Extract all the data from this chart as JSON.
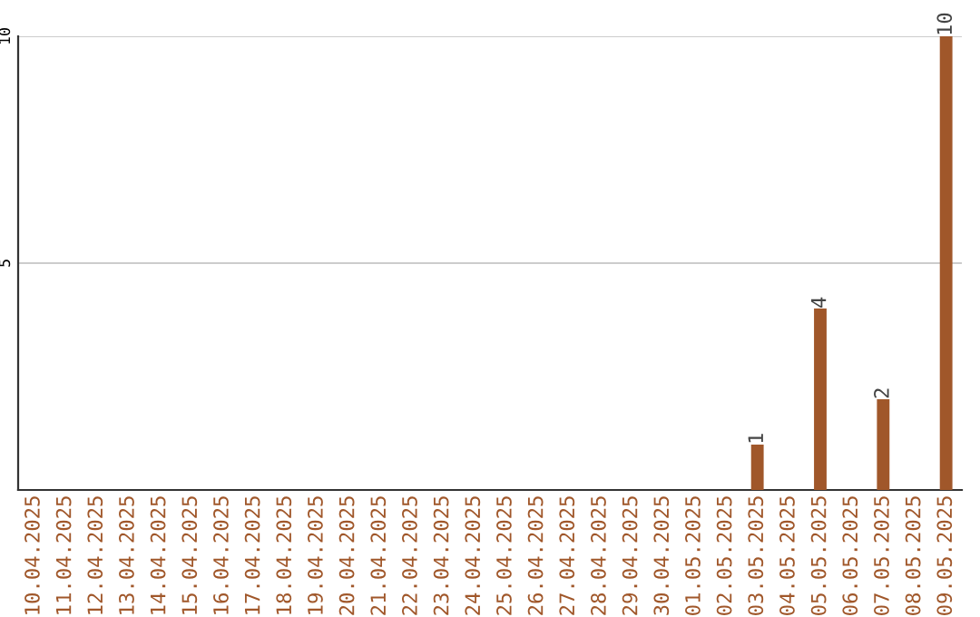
{
  "chart_data": {
    "type": "bar",
    "categories": [
      "10.04.2025",
      "11.04.2025",
      "12.04.2025",
      "13.04.2025",
      "14.04.2025",
      "15.04.2025",
      "16.04.2025",
      "17.04.2025",
      "18.04.2025",
      "19.04.2025",
      "20.04.2025",
      "21.04.2025",
      "22.04.2025",
      "23.04.2025",
      "24.04.2025",
      "25.04.2025",
      "26.04.2025",
      "27.04.2025",
      "28.04.2025",
      "29.04.2025",
      "30.04.2025",
      "01.05.2025",
      "02.05.2025",
      "03.05.2025",
      "04.05.2025",
      "05.05.2025",
      "06.05.2025",
      "07.05.2025",
      "08.05.2025",
      "09.05.2025"
    ],
    "values": [
      0,
      0,
      0,
      0,
      0,
      0,
      0,
      0,
      0,
      0,
      0,
      0,
      0,
      0,
      0,
      0,
      0,
      0,
      0,
      0,
      0,
      0,
      0,
      1,
      0,
      4,
      0,
      2,
      0,
      10
    ],
    "value_labels": [
      null,
      null,
      null,
      null,
      null,
      null,
      null,
      null,
      null,
      null,
      null,
      null,
      null,
      null,
      null,
      null,
      null,
      null,
      null,
      null,
      null,
      null,
      null,
      "1",
      null,
      "4",
      null,
      "2",
      null,
      "10"
    ],
    "color": "#a0572a",
    "ylim": [
      0,
      10
    ],
    "yticks": [
      5,
      10
    ],
    "grid": "y"
  }
}
